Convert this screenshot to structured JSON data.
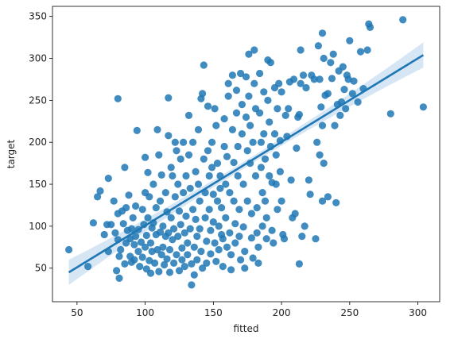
{
  "chart_data": {
    "type": "scatter",
    "title": "",
    "xlabel": "fitted",
    "ylabel": "target",
    "xlim": [
      32,
      316
    ],
    "ylim": [
      10,
      362
    ],
    "xticks": [
      50,
      100,
      150,
      200,
      250,
      300
    ],
    "yticks": [
      50,
      100,
      150,
      200,
      250,
      300,
      350
    ],
    "grid": false,
    "colors": {
      "points": "#1f77b4",
      "line": "#1f77b4",
      "band": "#a6c8e8"
    },
    "regression": {
      "x": [
        44,
        304
      ],
      "y": [
        45,
        304
      ],
      "ci_halfwidth_ends": 15,
      "ci_halfwidth_mid": 4
    },
    "points": [
      [
        44,
        72
      ],
      [
        58,
        52
      ],
      [
        62,
        104
      ],
      [
        65,
        135
      ],
      [
        67,
        142
      ],
      [
        70,
        90
      ],
      [
        72,
        102
      ],
      [
        73,
        157
      ],
      [
        73,
        70
      ],
      [
        75,
        102
      ],
      [
        77,
        130
      ],
      [
        78,
        92
      ],
      [
        79,
        47
      ],
      [
        80,
        84
      ],
      [
        80,
        252
      ],
      [
        80,
        115
      ],
      [
        81,
        38
      ],
      [
        81,
        64
      ],
      [
        82,
        72
      ],
      [
        83,
        118
      ],
      [
        84,
        103
      ],
      [
        85,
        170
      ],
      [
        85,
        55
      ],
      [
        86,
        80
      ],
      [
        86,
        122
      ],
      [
        87,
        95
      ],
      [
        88,
        137
      ],
      [
        89,
        64
      ],
      [
        89,
        85
      ],
      [
        90,
        97
      ],
      [
        90,
        57
      ],
      [
        91,
        110
      ],
      [
        92,
        78
      ],
      [
        92,
        60
      ],
      [
        93,
        88
      ],
      [
        93,
        124
      ],
      [
        94,
        214
      ],
      [
        95,
        70
      ],
      [
        95,
        96
      ],
      [
        96,
        52
      ],
      [
        97,
        81
      ],
      [
        98,
        120
      ],
      [
        98,
        63
      ],
      [
        99,
        102
      ],
      [
        100,
        182
      ],
      [
        100,
        140
      ],
      [
        100,
        75
      ],
      [
        101,
        49
      ],
      [
        101,
        89
      ],
      [
        102,
        164
      ],
      [
        102,
        110
      ],
      [
        103,
        135
      ],
      [
        103,
        59
      ],
      [
        104,
        80
      ],
      [
        104,
        44
      ],
      [
        105,
        98
      ],
      [
        105,
        70
      ],
      [
        106,
        150
      ],
      [
        106,
        104
      ],
      [
        107,
        56
      ],
      [
        108,
        122
      ],
      [
        108,
        90
      ],
      [
        109,
        215
      ],
      [
        109,
        72
      ],
      [
        110,
        46
      ],
      [
        110,
        185
      ],
      [
        111,
        130
      ],
      [
        111,
        93
      ],
      [
        112,
        66
      ],
      [
        112,
        161
      ],
      [
        113,
        100
      ],
      [
        113,
        75
      ],
      [
        114,
        54
      ],
      [
        115,
        140
      ],
      [
        115,
        88
      ],
      [
        116,
        117
      ],
      [
        116,
        61
      ],
      [
        117,
        253
      ],
      [
        117,
        208
      ],
      [
        117,
        92
      ],
      [
        118,
        72
      ],
      [
        118,
        45
      ],
      [
        119,
        170
      ],
      [
        119,
        110
      ],
      [
        120,
        160
      ],
      [
        120,
        84
      ],
      [
        121,
        97
      ],
      [
        121,
        56
      ],
      [
        122,
        135
      ],
      [
        122,
        200
      ],
      [
        123,
        66
      ],
      [
        123,
        190
      ],
      [
        124,
        150
      ],
      [
        124,
        88
      ],
      [
        125,
        118
      ],
      [
        125,
        47
      ],
      [
        126,
        180
      ],
      [
        126,
        102
      ],
      [
        127,
        74
      ],
      [
        127,
        60
      ],
      [
        128,
        200
      ],
      [
        128,
        140
      ],
      [
        129,
        92
      ],
      [
        129,
        52
      ],
      [
        130,
        160
      ],
      [
        130,
        112
      ],
      [
        131,
        66
      ],
      [
        131,
        80
      ],
      [
        132,
        185
      ],
      [
        132,
        232
      ],
      [
        133,
        145
      ],
      [
        133,
        97
      ],
      [
        134,
        55
      ],
      [
        134,
        30
      ],
      [
        135,
        200
      ],
      [
        135,
        120
      ],
      [
        136,
        75
      ],
      [
        136,
        42
      ],
      [
        137,
        165
      ],
      [
        137,
        108
      ],
      [
        138,
        88
      ],
      [
        138,
        60
      ],
      [
        139,
        215
      ],
      [
        139,
        150
      ],
      [
        140,
        130
      ],
      [
        140,
        97
      ],
      [
        141,
        252
      ],
      [
        141,
        70
      ],
      [
        142,
        258
      ],
      [
        142,
        50
      ],
      [
        143,
        292
      ],
      [
        143,
        180
      ],
      [
        144,
        140
      ],
      [
        144,
        110
      ],
      [
        145,
        82
      ],
      [
        145,
        56
      ],
      [
        146,
        243
      ],
      [
        146,
        190
      ],
      [
        147,
        160
      ],
      [
        147,
        120
      ],
      [
        148,
        95
      ],
      [
        148,
        67
      ],
      [
        149,
        200
      ],
      [
        149,
        170
      ],
      [
        150,
        138
      ],
      [
        150,
        105
      ],
      [
        151,
        240
      ],
      [
        151,
        80
      ],
      [
        152,
        58
      ],
      [
        152,
        220
      ],
      [
        153,
        175
      ],
      [
        153,
        130
      ],
      [
        154,
        100
      ],
      [
        154,
        72
      ],
      [
        155,
        160
      ],
      [
        155,
        145
      ],
      [
        156,
        90
      ],
      [
        156,
        122
      ],
      [
        157,
        85
      ],
      [
        157,
        52
      ],
      [
        158,
        228
      ],
      [
        158,
        195
      ],
      [
        159,
        150
      ],
      [
        159,
        110
      ],
      [
        160,
        75
      ],
      [
        160,
        183
      ],
      [
        161,
        270
      ],
      [
        161,
        255
      ],
      [
        162,
        140
      ],
      [
        162,
        92
      ],
      [
        163,
        66
      ],
      [
        163,
        48
      ],
      [
        164,
        280
      ],
      [
        164,
        215
      ],
      [
        165,
        176
      ],
      [
        165,
        130
      ],
      [
        166,
        103
      ],
      [
        166,
        80
      ],
      [
        167,
        262
      ],
      [
        167,
        235
      ],
      [
        168,
        195
      ],
      [
        168,
        160
      ],
      [
        169,
        120
      ],
      [
        169,
        88
      ],
      [
        170,
        60
      ],
      [
        170,
        282
      ],
      [
        171,
        245
      ],
      [
        171,
        210
      ],
      [
        172,
        150
      ],
      [
        172,
        99
      ],
      [
        173,
        70
      ],
      [
        173,
        50
      ],
      [
        174,
        278
      ],
      [
        174,
        230
      ],
      [
        175,
        190
      ],
      [
        175,
        130
      ],
      [
        176,
        305
      ],
      [
        176,
        255
      ],
      [
        177,
        220
      ],
      [
        177,
        175
      ],
      [
        178,
        115
      ],
      [
        178,
        86
      ],
      [
        179,
        62
      ],
      [
        179,
        200
      ],
      [
        180,
        310
      ],
      [
        180,
        270
      ],
      [
        181,
        240
      ],
      [
        181,
        160
      ],
      [
        182,
        122
      ],
      [
        182,
        92
      ],
      [
        183,
        75
      ],
      [
        183,
        56
      ],
      [
        184,
        282
      ],
      [
        184,
        235
      ],
      [
        185,
        200
      ],
      [
        185,
        170
      ],
      [
        186,
        140
      ],
      [
        186,
        100
      ],
      [
        187,
        260
      ],
      [
        187,
        210
      ],
      [
        188,
        180
      ],
      [
        188,
        130
      ],
      [
        189,
        110
      ],
      [
        189,
        85
      ],
      [
        190,
        298
      ],
      [
        190,
        250
      ],
      [
        191,
        224
      ],
      [
        191,
        160
      ],
      [
        192,
        295
      ],
      [
        192,
        195
      ],
      [
        193,
        152
      ],
      [
        193,
        95
      ],
      [
        194,
        80
      ],
      [
        195,
        265
      ],
      [
        195,
        210
      ],
      [
        196,
        185
      ],
      [
        196,
        150
      ],
      [
        197,
        240
      ],
      [
        197,
        120
      ],
      [
        198,
        270
      ],
      [
        199,
        202
      ],
      [
        199,
        165
      ],
      [
        200,
        260
      ],
      [
        200,
        130
      ],
      [
        201,
        90
      ],
      [
        202,
        85
      ],
      [
        203,
        232
      ],
      [
        204,
        207
      ],
      [
        205,
        240
      ],
      [
        206,
        272
      ],
      [
        207,
        155
      ],
      [
        208,
        110
      ],
      [
        209,
        275
      ],
      [
        210,
        115
      ],
      [
        211,
        193
      ],
      [
        212,
        230
      ],
      [
        213,
        233
      ],
      [
        213,
        55
      ],
      [
        214,
        270
      ],
      [
        214,
        310
      ],
      [
        215,
        88
      ],
      [
        216,
        280
      ],
      [
        217,
        100
      ],
      [
        218,
        265
      ],
      [
        220,
        155
      ],
      [
        221,
        138
      ],
      [
        222,
        280
      ],
      [
        224,
        275
      ],
      [
        225,
        85
      ],
      [
        226,
        200
      ],
      [
        227,
        315
      ],
      [
        228,
        275
      ],
      [
        228,
        185
      ],
      [
        229,
        242
      ],
      [
        230,
        330
      ],
      [
        230,
        220
      ],
      [
        230,
        130
      ],
      [
        231,
        175
      ],
      [
        231,
        300
      ],
      [
        232,
        256
      ],
      [
        234,
        258
      ],
      [
        234,
        135
      ],
      [
        236,
        295
      ],
      [
        237,
        276
      ],
      [
        238,
        305
      ],
      [
        239,
        220
      ],
      [
        240,
        128
      ],
      [
        241,
        245
      ],
      [
        242,
        285
      ],
      [
        243,
        232
      ],
      [
        244,
        248
      ],
      [
        245,
        290
      ],
      [
        246,
        263
      ],
      [
        247,
        240
      ],
      [
        248,
        280
      ],
      [
        249,
        275
      ],
      [
        250,
        321
      ],
      [
        252,
        258
      ],
      [
        253,
        273
      ],
      [
        256,
        248
      ],
      [
        258,
        308
      ],
      [
        260,
        264
      ],
      [
        263,
        310
      ],
      [
        264,
        341
      ],
      [
        265,
        337
      ],
      [
        280,
        234
      ],
      [
        289,
        346
      ],
      [
        304,
        242
      ]
    ]
  }
}
